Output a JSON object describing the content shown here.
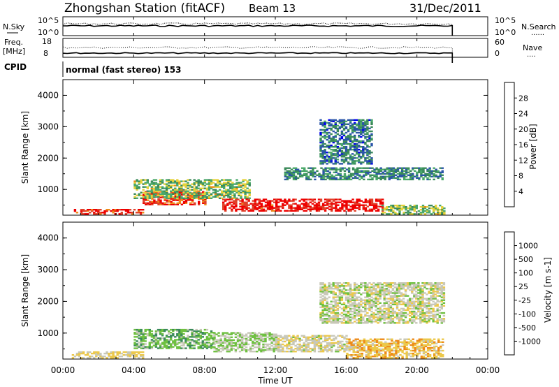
{
  "header": {
    "station": "Zhongshan Station (fitACF)",
    "beam": "Beam 13",
    "date": "31/Dec/2011"
  },
  "panel_nsky": {
    "left_label": "N.Sky",
    "left_ticks": [
      "10^5",
      "10^0"
    ],
    "right_ticks": [
      "10^5",
      "10^0"
    ],
    "right_label": "N.Search",
    "right_legend": "......"
  },
  "panel_freq": {
    "left_label_1": "Freq.",
    "left_label_2": "[MHz]",
    "left_ticks": [
      "18",
      "8"
    ],
    "right_ticks": [
      "60",
      "0"
    ],
    "right_legend_label": "Nave",
    "right_legend": "...."
  },
  "cpid": {
    "label": "CPID",
    "text": "normal (fast stereo) 153"
  },
  "x_axis": {
    "label": "Time UT",
    "ticks": [
      "00:00",
      "04:00",
      "08:00",
      "12:00",
      "16:00",
      "20:00",
      "00:00"
    ]
  },
  "colors": {
    "power": [
      "#0000ee",
      "#2a55a8",
      "#3b8a5a",
      "#4aa86a",
      "#e6d23a",
      "#ee8a18",
      "#e0402a",
      "#ee0000"
    ],
    "velocity": [
      "#ee0000",
      "#e0402a",
      "#ee8a18",
      "#ecc84a",
      "#c8c8b8",
      "#6ec040",
      "#3b8a5a",
      "#2a55a8",
      "#1f3faa"
    ]
  },
  "chart_data": [
    {
      "type": "heatmap",
      "panel": "power",
      "ylabel": "Slant Range [km]",
      "yticks": [
        "1000",
        "2000",
        "3000",
        "4000"
      ],
      "ylim": [
        180,
        4500
      ],
      "xlabel": "Time UT",
      "xlim_hours": [
        0,
        24
      ],
      "colorbar": {
        "label": "Power [dB]",
        "ticks": [
          "4",
          "8",
          "12",
          "16",
          "20",
          "24",
          "28"
        ],
        "range": [
          0,
          30
        ]
      },
      "echo_regions": [
        {
          "t": [
            0.5,
            4.5
          ],
          "r": [
            200,
            350
          ],
          "level": 26
        },
        {
          "t": [
            4.5,
            8.0
          ],
          "r": [
            500,
            950
          ],
          "level": 25
        },
        {
          "t": [
            4.0,
            10.5
          ],
          "r": [
            700,
            1300
          ],
          "level": 14
        },
        {
          "t": [
            9.0,
            12.0
          ],
          "r": [
            300,
            700
          ],
          "level": 27
        },
        {
          "t": [
            12.0,
            18.0
          ],
          "r": [
            300,
            700
          ],
          "level": 28
        },
        {
          "t": [
            12.5,
            21.5
          ],
          "r": [
            1300,
            1700
          ],
          "level": 10
        },
        {
          "t": [
            14.5,
            17.5
          ],
          "r": [
            1800,
            3200
          ],
          "level": 8
        },
        {
          "t": [
            18.0,
            21.5
          ],
          "r": [
            200,
            500
          ],
          "level": 14
        }
      ]
    },
    {
      "type": "heatmap",
      "panel": "velocity",
      "ylabel": "Slant Range [km]",
      "yticks": [
        "1000",
        "2000",
        "3000",
        "4000"
      ],
      "ylim": [
        180,
        4500
      ],
      "xlabel": "Time UT",
      "xlim_hours": [
        0,
        24
      ],
      "colorbar": {
        "label": "Velocity [m s-1]",
        "ticks": [
          "1000",
          "500",
          "100",
          "25",
          "-25",
          "-100",
          "-500",
          "-1000"
        ],
        "range": [
          -1200,
          1200
        ]
      },
      "echo_regions": [
        {
          "t": [
            0.5,
            4.5
          ],
          "r": [
            200,
            400
          ],
          "level": 150
        },
        {
          "t": [
            4.0,
            8.5
          ],
          "r": [
            500,
            1100
          ],
          "level": -300
        },
        {
          "t": [
            8.5,
            12.0
          ],
          "r": [
            400,
            1000
          ],
          "level": -120
        },
        {
          "t": [
            12.0,
            16.0
          ],
          "r": [
            400,
            900
          ],
          "level": 80
        },
        {
          "t": [
            14.5,
            21.5
          ],
          "r": [
            1300,
            2600
          ],
          "level": 0
        },
        {
          "t": [
            16.0,
            21.5
          ],
          "r": [
            200,
            800
          ],
          "level": 300
        }
      ]
    }
  ]
}
